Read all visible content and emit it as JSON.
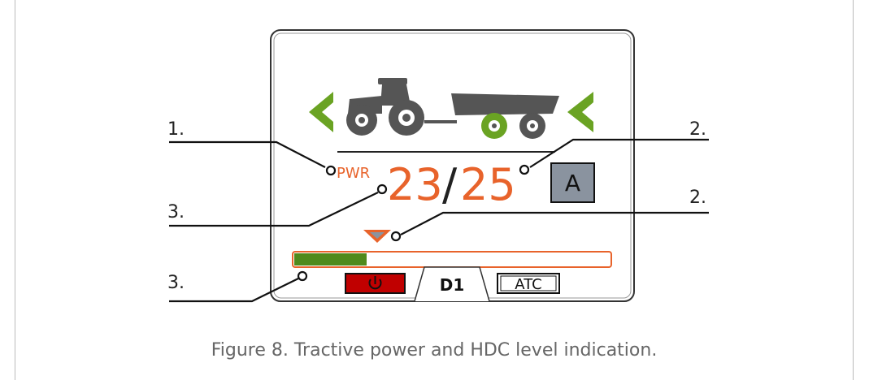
{
  "callouts": [
    "1.",
    "2.",
    "3.",
    "2.",
    "3."
  ],
  "screen": {
    "power_label": "PWR",
    "current": "23",
    "separator": "/",
    "maximum": "25",
    "mode": "A",
    "tab": "D1",
    "atc": "ATC"
  },
  "caption": "Figure 8. Tractive power and HDC level indication."
}
